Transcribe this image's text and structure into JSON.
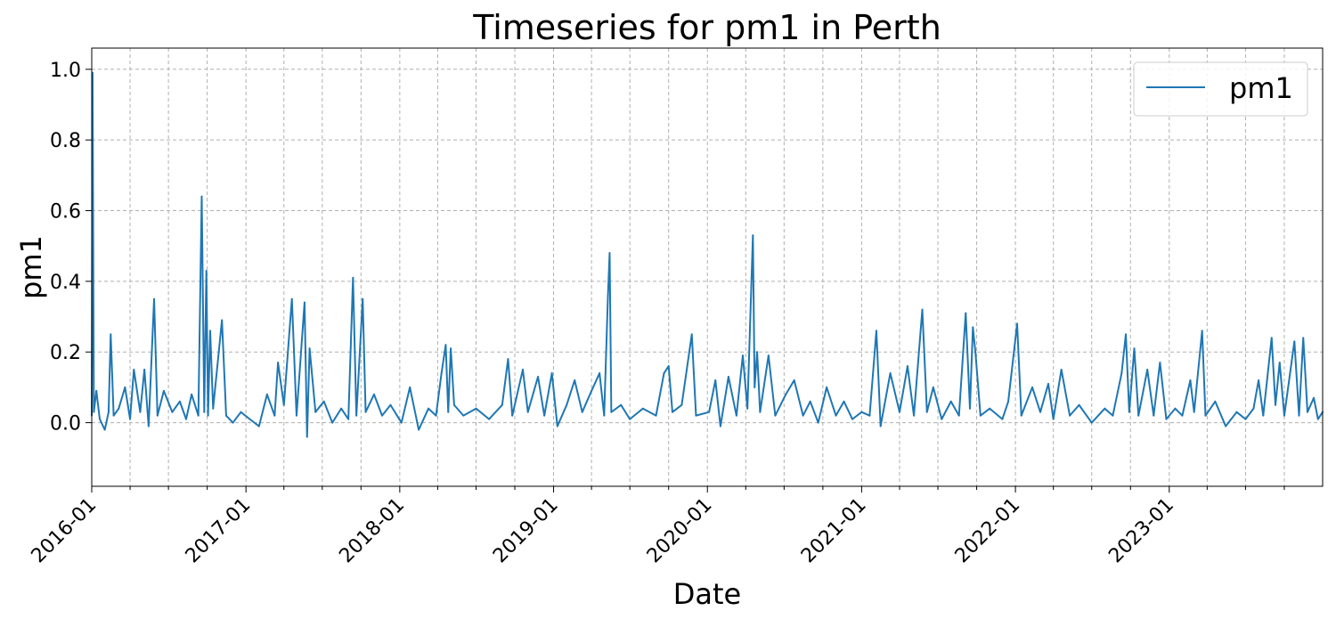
{
  "chart_data": {
    "type": "line",
    "title": "Timeseries for pm1 in Perth",
    "xlabel": "Date",
    "ylabel": "pm1",
    "x_range": [
      "2016-01-01",
      "2023-12-31"
    ],
    "ylim": [
      -0.18,
      1.06
    ],
    "y_ticks": [
      0.0,
      0.2,
      0.4,
      0.6,
      0.8,
      1.0
    ],
    "y_tick_labels": [
      "0.0",
      "0.2",
      "0.4",
      "0.6",
      "0.8",
      "1.0"
    ],
    "x_ticks": [
      "2016-01-01",
      "2017-01-01",
      "2018-01-01",
      "2019-01-01",
      "2020-01-01",
      "2021-01-01",
      "2022-01-01",
      "2023-01-01"
    ],
    "x_tick_labels": [
      "2016-01",
      "2017-01",
      "2018-01",
      "2019-01",
      "2020-01",
      "2021-01",
      "2022-01",
      "2023-01"
    ],
    "grid": true,
    "grid_style": "dashed",
    "legend_position": "top-right",
    "series": [
      {
        "name": "pm1",
        "color": "#1f77b4",
        "points": [
          [
            "2016-01-01",
            0.02
          ],
          [
            "2016-01-03",
            0.99
          ],
          [
            "2016-01-06",
            0.03
          ],
          [
            "2016-01-12",
            0.09
          ],
          [
            "2016-01-20",
            0.01
          ],
          [
            "2016-02-01",
            -0.02
          ],
          [
            "2016-02-10",
            0.03
          ],
          [
            "2016-02-15",
            0.25
          ],
          [
            "2016-02-22",
            0.02
          ],
          [
            "2016-03-05",
            0.04
          ],
          [
            "2016-03-20",
            0.1
          ],
          [
            "2016-04-01",
            0.01
          ],
          [
            "2016-04-10",
            0.15
          ],
          [
            "2016-04-25",
            0.03
          ],
          [
            "2016-05-05",
            0.15
          ],
          [
            "2016-05-15",
            -0.01
          ],
          [
            "2016-05-28",
            0.35
          ],
          [
            "2016-06-05",
            0.02
          ],
          [
            "2016-06-20",
            0.09
          ],
          [
            "2016-07-10",
            0.03
          ],
          [
            "2016-07-28",
            0.06
          ],
          [
            "2016-08-12",
            0.01
          ],
          [
            "2016-08-25",
            0.08
          ],
          [
            "2016-09-10",
            0.02
          ],
          [
            "2016-09-18",
            0.64
          ],
          [
            "2016-09-24",
            0.03
          ],
          [
            "2016-09-29",
            0.43
          ],
          [
            "2016-10-03",
            0.02
          ],
          [
            "2016-10-08",
            0.26
          ],
          [
            "2016-10-15",
            0.04
          ],
          [
            "2016-11-05",
            0.29
          ],
          [
            "2016-11-15",
            0.02
          ],
          [
            "2016-12-01",
            0.0
          ],
          [
            "2016-12-20",
            0.03
          ],
          [
            "2017-01-10",
            0.01
          ],
          [
            "2017-02-01",
            -0.01
          ],
          [
            "2017-02-20",
            0.08
          ],
          [
            "2017-03-10",
            0.02
          ],
          [
            "2017-03-18",
            0.17
          ],
          [
            "2017-04-01",
            0.05
          ],
          [
            "2017-04-20",
            0.35
          ],
          [
            "2017-05-01",
            0.02
          ],
          [
            "2017-05-20",
            0.34
          ],
          [
            "2017-05-26",
            -0.04
          ],
          [
            "2017-06-01",
            0.21
          ],
          [
            "2017-06-15",
            0.03
          ],
          [
            "2017-07-05",
            0.06
          ],
          [
            "2017-07-25",
            0.0
          ],
          [
            "2017-08-15",
            0.04
          ],
          [
            "2017-09-01",
            0.01
          ],
          [
            "2017-09-12",
            0.41
          ],
          [
            "2017-09-20",
            0.02
          ],
          [
            "2017-10-05",
            0.35
          ],
          [
            "2017-10-12",
            0.03
          ],
          [
            "2017-11-01",
            0.08
          ],
          [
            "2017-11-20",
            0.02
          ],
          [
            "2017-12-10",
            0.05
          ],
          [
            "2018-01-05",
            0.0
          ],
          [
            "2018-01-25",
            0.1
          ],
          [
            "2018-02-15",
            -0.02
          ],
          [
            "2018-03-10",
            0.04
          ],
          [
            "2018-03-28",
            0.02
          ],
          [
            "2018-04-10",
            0.14
          ],
          [
            "2018-04-20",
            0.22
          ],
          [
            "2018-04-26",
            0.03
          ],
          [
            "2018-05-02",
            0.21
          ],
          [
            "2018-05-10",
            0.05
          ],
          [
            "2018-06-01",
            0.02
          ],
          [
            "2018-07-01",
            0.04
          ],
          [
            "2018-08-01",
            0.01
          ],
          [
            "2018-09-01",
            0.05
          ],
          [
            "2018-09-15",
            0.18
          ],
          [
            "2018-09-25",
            0.02
          ],
          [
            "2018-10-20",
            0.15
          ],
          [
            "2018-11-01",
            0.03
          ],
          [
            "2018-11-25",
            0.13
          ],
          [
            "2018-12-10",
            0.02
          ],
          [
            "2018-12-28",
            0.14
          ],
          [
            "2019-01-10",
            -0.01
          ],
          [
            "2019-02-01",
            0.05
          ],
          [
            "2019-02-20",
            0.12
          ],
          [
            "2019-03-10",
            0.03
          ],
          [
            "2019-04-01",
            0.09
          ],
          [
            "2019-04-20",
            0.14
          ],
          [
            "2019-05-01",
            0.02
          ],
          [
            "2019-05-10",
            0.36
          ],
          [
            "2019-05-14",
            0.48
          ],
          [
            "2019-05-18",
            0.03
          ],
          [
            "2019-06-10",
            0.05
          ],
          [
            "2019-07-01",
            0.01
          ],
          [
            "2019-08-01",
            0.04
          ],
          [
            "2019-09-01",
            0.02
          ],
          [
            "2019-09-20",
            0.14
          ],
          [
            "2019-10-01",
            0.16
          ],
          [
            "2019-10-10",
            0.03
          ],
          [
            "2019-11-01",
            0.05
          ],
          [
            "2019-11-25",
            0.25
          ],
          [
            "2019-12-05",
            0.02
          ],
          [
            "2020-01-05",
            0.03
          ],
          [
            "2020-01-20",
            0.12
          ],
          [
            "2020-02-01",
            -0.01
          ],
          [
            "2020-02-20",
            0.13
          ],
          [
            "2020-03-10",
            0.02
          ],
          [
            "2020-03-25",
            0.19
          ],
          [
            "2020-04-05",
            0.04
          ],
          [
            "2020-04-18",
            0.53
          ],
          [
            "2020-04-22",
            0.1
          ],
          [
            "2020-04-28",
            0.2
          ],
          [
            "2020-05-05",
            0.03
          ],
          [
            "2020-05-25",
            0.19
          ],
          [
            "2020-06-10",
            0.02
          ],
          [
            "2020-07-05",
            0.08
          ],
          [
            "2020-07-25",
            0.12
          ],
          [
            "2020-08-15",
            0.02
          ],
          [
            "2020-09-01",
            0.06
          ],
          [
            "2020-09-20",
            0.0
          ],
          [
            "2020-10-10",
            0.1
          ],
          [
            "2020-11-01",
            0.02
          ],
          [
            "2020-11-20",
            0.06
          ],
          [
            "2020-12-10",
            0.01
          ],
          [
            "2021-01-01",
            0.03
          ],
          [
            "2021-01-20",
            0.02
          ],
          [
            "2021-02-05",
            0.26
          ],
          [
            "2021-02-15",
            -0.01
          ],
          [
            "2021-03-10",
            0.14
          ],
          [
            "2021-04-01",
            0.03
          ],
          [
            "2021-04-20",
            0.16
          ],
          [
            "2021-05-05",
            0.02
          ],
          [
            "2021-05-25",
            0.32
          ],
          [
            "2021-06-05",
            0.03
          ],
          [
            "2021-06-20",
            0.1
          ],
          [
            "2021-07-10",
            0.01
          ],
          [
            "2021-08-01",
            0.06
          ],
          [
            "2021-08-20",
            0.02
          ],
          [
            "2021-09-05",
            0.31
          ],
          [
            "2021-09-15",
            0.04
          ],
          [
            "2021-09-22",
            0.27
          ],
          [
            "2021-09-28",
            0.2
          ],
          [
            "2021-10-10",
            0.02
          ],
          [
            "2021-11-01",
            0.04
          ],
          [
            "2021-12-01",
            0.01
          ],
          [
            "2021-12-15",
            0.06
          ],
          [
            "2022-01-05",
            0.28
          ],
          [
            "2022-01-15",
            0.02
          ],
          [
            "2022-02-10",
            0.1
          ],
          [
            "2022-03-01",
            0.03
          ],
          [
            "2022-03-20",
            0.11
          ],
          [
            "2022-04-01",
            0.01
          ],
          [
            "2022-04-20",
            0.15
          ],
          [
            "2022-05-10",
            0.02
          ],
          [
            "2022-06-01",
            0.05
          ],
          [
            "2022-07-01",
            0.0
          ],
          [
            "2022-08-01",
            0.04
          ],
          [
            "2022-08-20",
            0.02
          ],
          [
            "2022-09-10",
            0.14
          ],
          [
            "2022-09-20",
            0.25
          ],
          [
            "2022-09-28",
            0.03
          ],
          [
            "2022-10-10",
            0.21
          ],
          [
            "2022-10-20",
            0.02
          ],
          [
            "2022-11-10",
            0.15
          ],
          [
            "2022-11-25",
            0.02
          ],
          [
            "2022-12-10",
            0.17
          ],
          [
            "2022-12-25",
            0.01
          ],
          [
            "2023-01-15",
            0.04
          ],
          [
            "2023-02-01",
            0.02
          ],
          [
            "2023-02-20",
            0.12
          ],
          [
            "2023-03-01",
            0.03
          ],
          [
            "2023-03-20",
            0.26
          ],
          [
            "2023-03-28",
            0.02
          ],
          [
            "2023-04-20",
            0.06
          ],
          [
            "2023-05-15",
            -0.01
          ],
          [
            "2023-06-10",
            0.03
          ],
          [
            "2023-07-01",
            0.01
          ],
          [
            "2023-07-20",
            0.04
          ],
          [
            "2023-08-01",
            0.12
          ],
          [
            "2023-08-12",
            0.02
          ],
          [
            "2023-09-01",
            0.24
          ],
          [
            "2023-09-10",
            0.05
          ],
          [
            "2023-09-20",
            0.17
          ],
          [
            "2023-10-01",
            0.02
          ],
          [
            "2023-10-25",
            0.23
          ],
          [
            "2023-11-05",
            0.02
          ],
          [
            "2023-11-15",
            0.24
          ],
          [
            "2023-11-25",
            0.03
          ],
          [
            "2023-12-10",
            0.07
          ],
          [
            "2023-12-20",
            0.01
          ],
          [
            "2023-12-31",
            0.03
          ]
        ]
      }
    ]
  }
}
